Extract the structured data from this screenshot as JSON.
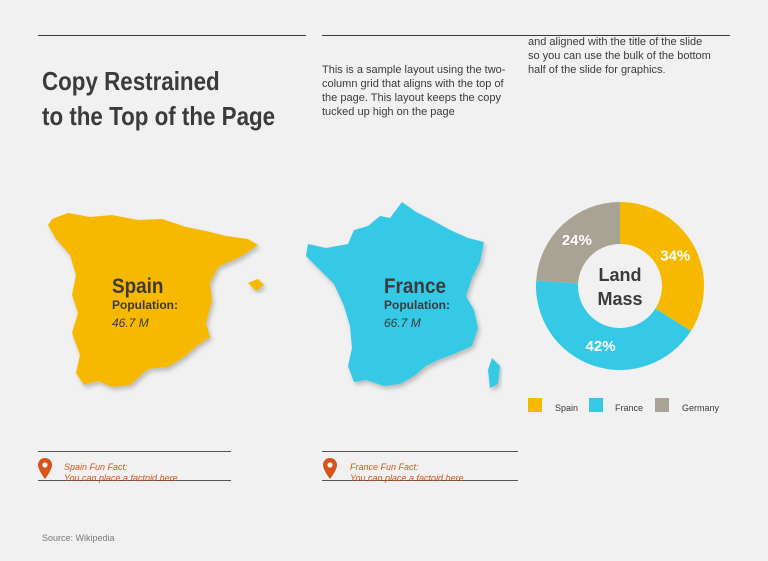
{
  "header": {
    "title_line1": "Copy Restrained",
    "title_line2": "to the Top of the Page",
    "paragraph_left": "This is a sample layout using the two-column grid that aligns with the top of the page. This layout keeps the copy tucked up high on the page",
    "paragraph_right_line1": "and aligned with the title of the slide",
    "paragraph_right_line2": "so you can use the bulk of the bottom half of the slide for graphics."
  },
  "countries": [
    {
      "name": "Spain",
      "population_label": "Population:",
      "population_value": "46.7 M",
      "color": "#f7b800"
    },
    {
      "name": "France",
      "population_label": "Population:",
      "population_value": "66.7 M",
      "color": "#35c9e6"
    }
  ],
  "facts": [
    {
      "title": "Spain Fun Fact:",
      "text": "You can place a factoid here"
    },
    {
      "title": "France Fun Fact:",
      "text": "You can place a factoid here"
    }
  ],
  "source": "Source: Wikipedia",
  "chart_data": {
    "type": "pie",
    "title": "Land Mass",
    "center_line1": "Land",
    "center_line2": "Mass",
    "legend_position": "bottom",
    "slices": [
      {
        "label": "Spain",
        "value": 34,
        "display": "34%",
        "color": "#f7b800"
      },
      {
        "label": "France",
        "value": 42,
        "display": "42%",
        "color": "#35c9e6"
      },
      {
        "label": "Germany",
        "value": 24,
        "display": "24%",
        "color": "#a8a395"
      }
    ]
  }
}
